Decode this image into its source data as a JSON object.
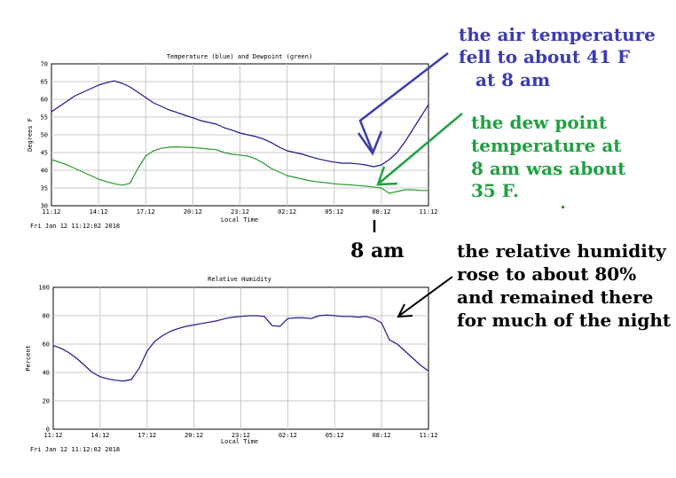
{
  "chart_data": [
    {
      "type": "line",
      "title": "Temperature (blue) and Dewpoint (green)",
      "xlabel": "Local Time",
      "ylabel": "Degrees F",
      "ylim": [
        30,
        70
      ],
      "y_ticks": [
        30,
        35,
        40,
        45,
        50,
        55,
        60,
        65,
        70
      ],
      "x_ticks": [
        "11:12",
        "14:12",
        "17:12",
        "20:12",
        "23:12",
        "02:12",
        "05:12",
        "08:12",
        "11:12"
      ],
      "timestamp": "Fri Jan 12 11:12:02 2018",
      "grid": true,
      "series": [
        {
          "color": "#1a1a8c",
          "x_hours": [
            0,
            0.5,
            1,
            1.5,
            2,
            2.5,
            3,
            3.5,
            4,
            4.5,
            5,
            5.5,
            6,
            6.5,
            7,
            7.5,
            8,
            8.5,
            9,
            9.5,
            10,
            10.5,
            11,
            11.5,
            12,
            12.5,
            13,
            13.5,
            14,
            14.5,
            15,
            15.5,
            16,
            16.5,
            17,
            17.5,
            18,
            18.5,
            19,
            19.5,
            20,
            20.5,
            21,
            21.5,
            22,
            22.5,
            23,
            23.5,
            24
          ],
          "values": [
            56.5,
            58,
            59.5,
            61,
            62,
            63,
            64,
            64.7,
            65.2,
            64.5,
            63.5,
            62,
            60.5,
            59,
            58,
            57,
            56.3,
            55.5,
            54.8,
            54,
            53.5,
            53,
            52,
            51.3,
            50.5,
            50,
            49.5,
            48.8,
            47.8,
            46.5,
            45.5,
            45,
            44.5,
            43.8,
            43.2,
            42.7,
            42.3,
            42,
            42,
            41.8,
            41.5,
            41,
            41.5,
            43,
            45,
            48,
            51.5,
            55,
            58.5
          ]
        },
        {
          "color": "#2a9a2a",
          "x_hours": [
            0,
            0.5,
            1,
            1.5,
            2,
            2.5,
            3,
            3.5,
            4,
            4.5,
            5,
            5.5,
            6,
            6.5,
            7,
            7.5,
            8,
            8.5,
            9,
            9.5,
            10,
            10.5,
            11,
            11.5,
            12,
            12.5,
            13,
            13.5,
            14,
            14.5,
            15,
            15.5,
            16,
            16.5,
            17,
            17.5,
            18,
            18.5,
            19,
            19.5,
            20,
            20.5,
            21,
            21.5,
            22,
            22.5,
            23,
            23.5,
            24
          ],
          "values": [
            43,
            42.3,
            41.5,
            40.5,
            39.5,
            38.5,
            37.5,
            36.8,
            36.2,
            35.8,
            36.3,
            40.5,
            44,
            45.5,
            46.2,
            46.5,
            46.6,
            46.5,
            46.4,
            46.2,
            46,
            45.8,
            45,
            44.5,
            44.3,
            44,
            43.2,
            42,
            40.5,
            39.5,
            38.5,
            38,
            37.5,
            37,
            36.7,
            36.5,
            36.2,
            36,
            35.9,
            35.7,
            35.5,
            35.3,
            35,
            33.5,
            34,
            34.5,
            34.5,
            34.3,
            34.3
          ]
        }
      ]
    },
    {
      "type": "line",
      "title": "Relative Humidity",
      "xlabel": "Local Time",
      "ylabel": "Percent",
      "ylim": [
        0,
        100
      ],
      "y_ticks": [
        0,
        20,
        40,
        60,
        80,
        100
      ],
      "x_ticks": [
        "11:12",
        "14:12",
        "17:12",
        "20:12",
        "23:12",
        "02:12",
        "05:12",
        "08:12",
        "11:12"
      ],
      "timestamp": "Fri Jan 12 11:12:02 2018",
      "grid": true,
      "series": [
        {
          "color": "#1a1a8c",
          "x_hours": [
            0,
            0.5,
            1,
            1.5,
            2,
            2.5,
            3,
            3.5,
            4,
            4.5,
            5,
            5.5,
            6,
            6.5,
            7,
            7.5,
            8,
            8.5,
            9,
            9.5,
            10,
            10.5,
            11,
            11.5,
            12,
            12.5,
            13,
            13.5,
            14,
            14.5,
            15,
            15.5,
            16,
            16.5,
            17,
            17.5,
            18,
            18.5,
            19,
            19.5,
            20,
            20.5,
            21,
            21.5,
            22,
            22.5,
            23,
            23.5,
            24
          ],
          "values": [
            59,
            57,
            54,
            50,
            45,
            40,
            37,
            35.5,
            34.5,
            34,
            35,
            43,
            55,
            62,
            66,
            69,
            71,
            72.5,
            73.5,
            74.5,
            75.5,
            76.5,
            78,
            79,
            79.5,
            80,
            80,
            79.5,
            73,
            72.5,
            78,
            78.5,
            78.5,
            78,
            80,
            80.5,
            80,
            79.5,
            79.5,
            79,
            79.5,
            78,
            75,
            63,
            60,
            55,
            50,
            45,
            41
          ]
        }
      ]
    }
  ],
  "annotations": {
    "air_temp": [
      "the air temperature",
      "fell to about 41 F",
      "at 8 am"
    ],
    "dew_point": [
      "the dew point",
      "temperature at",
      "8 am was about",
      "35 F."
    ],
    "time_marker": "8 am",
    "humidity": [
      "the relative humidity",
      "rose to about 80%",
      "and remained there",
      "for much of the night"
    ],
    "colors": {
      "blue": "#3b3bb0",
      "green": "#22a043",
      "black": "#000000"
    }
  }
}
